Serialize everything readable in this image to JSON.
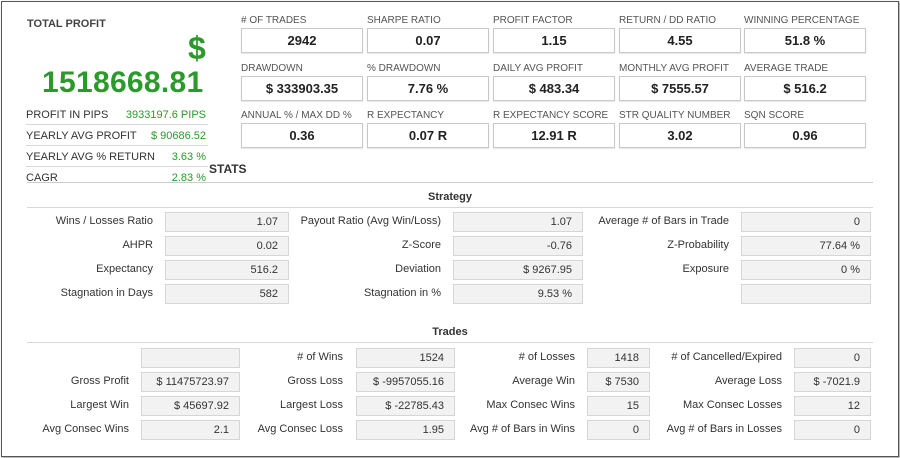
{
  "total_profit": {
    "title": "TOTAL PROFIT",
    "currency_symbol": "$",
    "value": "1518668.81"
  },
  "summary": [
    {
      "label": "PROFIT IN PIPS",
      "value": "3933197.6 PIPS"
    },
    {
      "label": "YEARLY AVG PROFIT",
      "value": "$ 90686.52"
    },
    {
      "label": "YEARLY AVG % RETURN",
      "value": "3.63 %"
    },
    {
      "label": "CAGR",
      "value": "2.83 %"
    }
  ],
  "cards": [
    {
      "label": "# OF TRADES",
      "value": "2942"
    },
    {
      "label": "SHARPE RATIO",
      "value": "0.07"
    },
    {
      "label": "PROFIT FACTOR",
      "value": "1.15"
    },
    {
      "label": "RETURN / DD RATIO",
      "value": "4.55"
    },
    {
      "label": "WINNING PERCENTAGE",
      "value": "51.8 %"
    },
    {
      "label": "DRAWDOWN",
      "value": "$ 333903.35"
    },
    {
      "label": "% DRAWDOWN",
      "value": "7.76 %"
    },
    {
      "label": "DAILY AVG PROFIT",
      "value": "$ 483.34"
    },
    {
      "label": "MONTHLY AVG PROFIT",
      "value": "$ 7555.57"
    },
    {
      "label": "AVERAGE TRADE",
      "value": "$ 516.2"
    },
    {
      "label": "ANNUAL % / MAX DD %",
      "value": "0.36"
    },
    {
      "label": "R EXPECTANCY",
      "value": "0.07 R"
    },
    {
      "label": "R EXPECTANCY SCORE",
      "value": "12.91 R"
    },
    {
      "label": "STR QUALITY NUMBER",
      "value": "3.02"
    },
    {
      "label": "SQN SCORE",
      "value": "0.96"
    }
  ],
  "stats_heading": "STATS",
  "strategy": {
    "heading": "Strategy",
    "rows": [
      [
        {
          "label": "Wins / Losses Ratio",
          "value": "1.07"
        },
        {
          "label": "Payout Ratio (Avg Win/Loss)",
          "value": "1.07"
        },
        {
          "label": "Average # of Bars in Trade",
          "value": "0"
        }
      ],
      [
        {
          "label": "AHPR",
          "value": "0.02"
        },
        {
          "label": "Z-Score",
          "value": "-0.76"
        },
        {
          "label": "Z-Probability",
          "value": "77.64 %"
        }
      ],
      [
        {
          "label": "Expectancy",
          "value": "516.2"
        },
        {
          "label": "Deviation",
          "value": "$ 9267.95"
        },
        {
          "label": "Exposure",
          "value": "0 %"
        }
      ],
      [
        {
          "label": "Stagnation in Days",
          "value": "582"
        },
        {
          "label": "Stagnation in %",
          "value": "9.53 %"
        },
        {
          "label": "",
          "value": ""
        }
      ]
    ]
  },
  "trades": {
    "heading": "Trades",
    "rows": [
      [
        {
          "label": "",
          "value": ""
        },
        {
          "label": "# of Wins",
          "value": "1524"
        },
        {
          "label": "# of Losses",
          "value": "1418"
        },
        {
          "label": "# of Cancelled/Expired",
          "value": "0"
        }
      ],
      [
        {
          "label": "Gross Profit",
          "value": "$ 11475723.97"
        },
        {
          "label": "Gross Loss",
          "value": "$ -9957055.16"
        },
        {
          "label": "Average Win",
          "value": "$ 7530"
        },
        {
          "label": "Average Loss",
          "value": "$ -7021.9"
        }
      ],
      [
        {
          "label": "Largest Win",
          "value": "$ 45697.92"
        },
        {
          "label": "Largest Loss",
          "value": "$ -22785.43"
        },
        {
          "label": "Max Consec Wins",
          "value": "15"
        },
        {
          "label": "Max Consec Losses",
          "value": "12"
        }
      ],
      [
        {
          "label": "Avg Consec Wins",
          "value": "2.1"
        },
        {
          "label": "Avg Consec Loss",
          "value": "1.95"
        },
        {
          "label": "Avg # of Bars in Wins",
          "value": "0"
        },
        {
          "label": "Avg # of Bars in Losses",
          "value": "0"
        }
      ]
    ]
  },
  "colors": {
    "profit_green": "#2a9a2a"
  }
}
